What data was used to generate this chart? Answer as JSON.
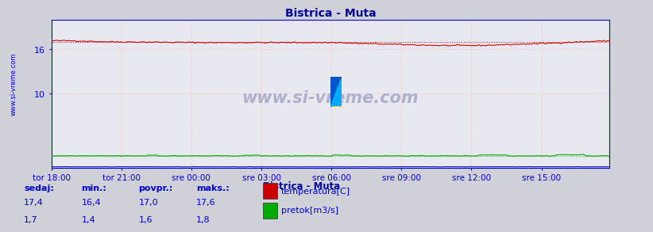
{
  "title": "Bistrica - Muta",
  "title_color": "#000099",
  "bg_color": "#d0d0d8",
  "plot_bg_color": "#e8e8f0",
  "watermark": "www.si-vreme.com",
  "x_tick_labels": [
    "tor 18:00",
    "tor 21:00",
    "sre 00:00",
    "sre 03:00",
    "sre 06:00",
    "sre 09:00",
    "sre 12:00",
    "sre 15:00"
  ],
  "x_tick_positions": [
    0,
    36,
    72,
    108,
    144,
    180,
    216,
    252
  ],
  "n_points": 288,
  "y_min": 0,
  "y_max": 20,
  "y_ticks": [
    10,
    16
  ],
  "temp_avg": 17.0,
  "flow_avg": 1.6,
  "temp_color": "#cc0000",
  "flow_color": "#00aa00",
  "height_color": "#0000cc",
  "grid_color_h": "#ffaaaa",
  "grid_color_v": "#ffaaaa",
  "axis_color": "#0000cc",
  "tick_label_color": "#0000cc",
  "label_area_bg": "#c0c0cc",
  "legend_title": "Bistrica - Muta",
  "legend_title_color": "#000099",
  "legend_items": [
    {
      "label": "temperatura[C]",
      "color": "#cc0000"
    },
    {
      "label": "pretok[m3/s]",
      "color": "#00aa00"
    }
  ],
  "stats_labels": [
    "sedaj:",
    "min.:",
    "povpr.:",
    "maks.:"
  ],
  "stats_temp": [
    "17,4",
    "16,4",
    "17,0",
    "17,6"
  ],
  "stats_flow": [
    "1,7",
    "1,4",
    "1,6",
    "1,8"
  ],
  "stats_color": "#0000cc",
  "watermark_color": "#b0b0cc",
  "left_label": "www.si-vreme.com",
  "left_label_color": "#0000cc"
}
